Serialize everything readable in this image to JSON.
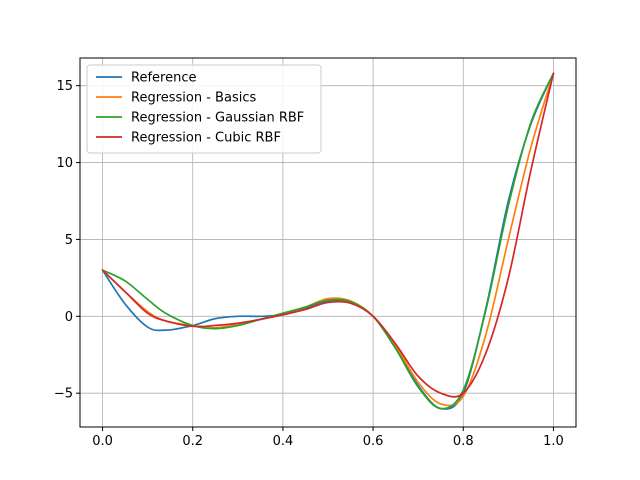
{
  "chart_data": {
    "type": "line",
    "title": "",
    "xlabel": "",
    "ylabel": "",
    "xlim": [
      -0.05,
      1.05
    ],
    "ylim": [
      -7.2,
      16.8
    ],
    "xticks": [
      0.0,
      0.2,
      0.4,
      0.6,
      0.8,
      1.0
    ],
    "xtick_labels": [
      "0.0",
      "0.2",
      "0.4",
      "0.6",
      "0.8",
      "1.0"
    ],
    "yticks": [
      -5,
      0,
      5,
      10,
      15
    ],
    "ytick_labels": [
      "−5",
      "0",
      "5",
      "10",
      "15"
    ],
    "grid": true,
    "legend_position": "top-left",
    "x": [
      0.0,
      0.05,
      0.1,
      0.14,
      0.2,
      0.25,
      0.3,
      0.35,
      0.4,
      0.45,
      0.5,
      0.55,
      0.6,
      0.65,
      0.7,
      0.75,
      0.8,
      0.85,
      0.9,
      0.95,
      1.0
    ],
    "series": [
      {
        "name": "Reference",
        "color": "#1f77b4",
        "values": [
          3.0,
          0.8,
          -0.7,
          -0.9,
          -0.6,
          -0.15,
          0.0,
          0.0,
          0.1,
          0.5,
          1.0,
          0.9,
          0.0,
          -2.0,
          -4.5,
          -6.0,
          -5.0,
          0.5,
          7.5,
          12.5,
          15.8
        ]
      },
      {
        "name": "Regression - Basics",
        "color": "#ff7f0e",
        "values": [
          3.0,
          1.6,
          0.3,
          -0.3,
          -0.6,
          -0.75,
          -0.5,
          -0.2,
          0.15,
          0.6,
          1.15,
          1.0,
          0.0,
          -1.9,
          -4.3,
          -5.7,
          -5.2,
          -1.2,
          5.0,
          11.0,
          15.8
        ]
      },
      {
        "name": "Regression - Gaussian RBF",
        "color": "#2ca02c",
        "values": [
          3.0,
          2.3,
          1.1,
          0.2,
          -0.6,
          -0.8,
          -0.6,
          -0.2,
          0.2,
          0.6,
          1.05,
          0.95,
          0.0,
          -2.1,
          -4.6,
          -6.0,
          -4.8,
          0.4,
          7.2,
          12.6,
          15.8
        ]
      },
      {
        "name": "Regression - Cubic RBF",
        "color": "#d62728",
        "values": [
          3.0,
          1.6,
          0.2,
          -0.3,
          -0.65,
          -0.6,
          -0.45,
          -0.2,
          0.1,
          0.45,
          0.9,
          0.85,
          0.0,
          -1.8,
          -3.9,
          -5.0,
          -5.0,
          -2.4,
          2.5,
          9.5,
          15.8
        ]
      }
    ]
  }
}
